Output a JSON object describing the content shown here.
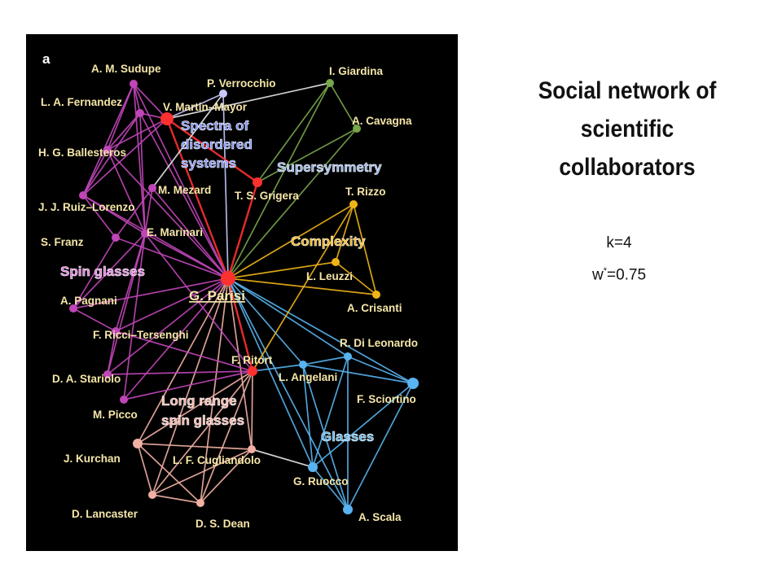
{
  "figure": {
    "panel_letter": "a",
    "colors": {
      "background": "#000000",
      "spin_glasses": "#c046b8",
      "disordered": "#ff3030",
      "supersymmetry": "#78a64a",
      "complexity": "#f0b418",
      "glasses": "#58b4f0",
      "long_range": "#f2b0a4",
      "other": "#c8c8ff",
      "white_edge": "#e8e8e8"
    },
    "nodes": [
      {
        "id": "sudupe",
        "label": "A. M. Sudupe",
        "group": "spin_glasses"
      },
      {
        "id": "fernandez",
        "label": "L. A. Fernandez",
        "group": "spin_glasses"
      },
      {
        "id": "ballesteros",
        "label": "H. G.  Ballesteros",
        "group": "spin_glasses"
      },
      {
        "id": "ruiz",
        "label": "J. J. Ruiz–Lorenzo",
        "group": "spin_glasses"
      },
      {
        "id": "franz",
        "label": "S. Franz",
        "group": "spin_glasses"
      },
      {
        "id": "marinari",
        "label": "E. Marinari",
        "group": "spin_glasses"
      },
      {
        "id": "pagnani",
        "label": "A. Pagnani",
        "group": "spin_glasses"
      },
      {
        "id": "ricci",
        "label": "F. Ricci–Tersenghi",
        "group": "spin_glasses"
      },
      {
        "id": "stariolo",
        "label": "D. A. Stariolo",
        "group": "spin_glasses"
      },
      {
        "id": "picco",
        "label": "M. Picco",
        "group": "spin_glasses"
      },
      {
        "id": "martin",
        "label": "V. Martin–Mayor",
        "group": "disordered"
      },
      {
        "id": "verrocchio",
        "label": "P. Verrocchio",
        "group": "other"
      },
      {
        "id": "mezard",
        "label": "M. Mezard",
        "group": "spin_glasses"
      },
      {
        "id": "grigera",
        "label": "T. S. Grigera",
        "group": "disordered"
      },
      {
        "id": "giardina",
        "label": "I. Giardina",
        "group": "supersymmetry"
      },
      {
        "id": "cavagna",
        "label": "A. Cavagna",
        "group": "supersymmetry"
      },
      {
        "id": "rizzo",
        "label": "T. Rizzo",
        "group": "complexity"
      },
      {
        "id": "leuzzi",
        "label": "L. Leuzzi",
        "group": "complexity"
      },
      {
        "id": "crisanti",
        "label": "A. Crisanti",
        "group": "complexity"
      },
      {
        "id": "parisi",
        "label": "G. Parisi",
        "group": "disordered"
      },
      {
        "id": "ritort",
        "label": "F. Ritort",
        "group": "disordered"
      },
      {
        "id": "dileonardo",
        "label": "R. Di Leonardo",
        "group": "glasses"
      },
      {
        "id": "angelani",
        "label": "L. Angelani",
        "group": "glasses"
      },
      {
        "id": "sciortino",
        "label": "F. Sciortino",
        "group": "glasses"
      },
      {
        "id": "ruocco",
        "label": "G. Ruocco",
        "group": "glasses"
      },
      {
        "id": "scala",
        "label": "A. Scala",
        "group": "glasses"
      },
      {
        "id": "kurchan",
        "label": "J. Kurchan",
        "group": "long_range"
      },
      {
        "id": "cugliandolo",
        "label": "L. F. Cugliandolo",
        "group": "long_range"
      },
      {
        "id": "lancaster",
        "label": "D. Lancaster",
        "group": "long_range"
      },
      {
        "id": "dean",
        "label": "D. S. Dean",
        "group": "long_range"
      }
    ],
    "community_labels": [
      {
        "id": "disordered_l1",
        "text": "Spectra of"
      },
      {
        "id": "disordered_l2",
        "text": "disordered"
      },
      {
        "id": "disordered_l3",
        "text": "systems"
      },
      {
        "id": "supersymmetry",
        "text": "Supersymmetry"
      },
      {
        "id": "complexity",
        "text": "Complexity"
      },
      {
        "id": "spin_glasses",
        "text": "Spin glasses"
      },
      {
        "id": "long_range_l1",
        "text": "Long range"
      },
      {
        "id": "long_range_l2",
        "text": "spin glasses"
      },
      {
        "id": "glasses",
        "text": "Glasses"
      }
    ],
    "edges": [
      [
        "parisi",
        "martin",
        "disordered"
      ],
      [
        "parisi",
        "verrocchio",
        "other"
      ],
      [
        "parisi",
        "grigera",
        "disordered"
      ],
      [
        "parisi",
        "ritort",
        "disordered"
      ],
      [
        "parisi",
        "giardina",
        "supersymmetry"
      ],
      [
        "parisi",
        "cavagna",
        "supersymmetry"
      ],
      [
        "parisi",
        "rizzo",
        "complexity"
      ],
      [
        "parisi",
        "leuzzi",
        "complexity"
      ],
      [
        "parisi",
        "crisanti",
        "complexity"
      ],
      [
        "parisi",
        "dileonardo",
        "glasses"
      ],
      [
        "parisi",
        "angelani",
        "glasses"
      ],
      [
        "parisi",
        "sciortino",
        "glasses"
      ],
      [
        "parisi",
        "ruocco",
        "glasses"
      ],
      [
        "parisi",
        "scala",
        "glasses"
      ],
      [
        "parisi",
        "sudupe",
        "spin_glasses"
      ],
      [
        "parisi",
        "fernandez",
        "spin_glasses"
      ],
      [
        "parisi",
        "ballesteros",
        "spin_glasses"
      ],
      [
        "parisi",
        "ruiz",
        "spin_glasses"
      ],
      [
        "parisi",
        "franz",
        "spin_glasses"
      ],
      [
        "parisi",
        "marinari",
        "spin_glasses"
      ],
      [
        "parisi",
        "pagnani",
        "spin_glasses"
      ],
      [
        "parisi",
        "ricci",
        "spin_glasses"
      ],
      [
        "parisi",
        "stariolo",
        "spin_glasses"
      ],
      [
        "parisi",
        "picco",
        "spin_glasses"
      ],
      [
        "parisi",
        "mezard",
        "spin_glasses"
      ],
      [
        "parisi",
        "kurchan",
        "long_range"
      ],
      [
        "parisi",
        "cugliandolo",
        "long_range"
      ],
      [
        "parisi",
        "lancaster",
        "long_range"
      ],
      [
        "parisi",
        "dean",
        "long_range"
      ],
      [
        "martin",
        "sudupe",
        "spin_glasses"
      ],
      [
        "martin",
        "fernandez",
        "spin_glasses"
      ],
      [
        "martin",
        "ballesteros",
        "spin_glasses"
      ],
      [
        "martin",
        "ruiz",
        "spin_glasses"
      ],
      [
        "martin",
        "verrocchio",
        "other"
      ],
      [
        "martin",
        "grigera",
        "disordered"
      ],
      [
        "martin",
        "giardina",
        "white_edge"
      ],
      [
        "grigera",
        "giardina",
        "supersymmetry"
      ],
      [
        "grigera",
        "cavagna",
        "supersymmetry"
      ],
      [
        "giardina",
        "cavagna",
        "supersymmetry"
      ],
      [
        "mezard",
        "verrocchio",
        "white_edge"
      ],
      [
        "sudupe",
        "fernandez",
        "spin_glasses"
      ],
      [
        "sudupe",
        "ballesteros",
        "spin_glasses"
      ],
      [
        "sudupe",
        "ruiz",
        "spin_glasses"
      ],
      [
        "sudupe",
        "marinari",
        "spin_glasses"
      ],
      [
        "fernandez",
        "ballesteros",
        "spin_glasses"
      ],
      [
        "fernandez",
        "ruiz",
        "spin_glasses"
      ],
      [
        "fernandez",
        "marinari",
        "spin_glasses"
      ],
      [
        "ballesteros",
        "ruiz",
        "spin_glasses"
      ],
      [
        "ballesteros",
        "marinari",
        "spin_glasses"
      ],
      [
        "ruiz",
        "marinari",
        "spin_glasses"
      ],
      [
        "ruiz",
        "franz",
        "spin_glasses"
      ],
      [
        "marinari",
        "mezard",
        "spin_glasses"
      ],
      [
        "marinari",
        "pagnani",
        "spin_glasses"
      ],
      [
        "marinari",
        "ricci",
        "spin_glasses"
      ],
      [
        "marinari",
        "stariolo",
        "spin_glasses"
      ],
      [
        "marinari",
        "picco",
        "spin_glasses"
      ],
      [
        "marinari",
        "ritort",
        "spin_glasses"
      ],
      [
        "ricci",
        "ritort",
        "spin_glasses"
      ],
      [
        "stariolo",
        "ritort",
        "spin_glasses"
      ],
      [
        "picco",
        "ritort",
        "spin_glasses"
      ],
      [
        "ricci",
        "pagnani",
        "spin_glasses"
      ],
      [
        "franz",
        "pagnani",
        "spin_glasses"
      ],
      [
        "ricci",
        "stariolo",
        "spin_glasses"
      ],
      [
        "mezard",
        "franz",
        "spin_glasses"
      ],
      [
        "rizzo",
        "leuzzi",
        "complexity"
      ],
      [
        "rizzo",
        "crisanti",
        "complexity"
      ],
      [
        "leuzzi",
        "crisanti",
        "complexity"
      ],
      [
        "rizzo",
        "ritort",
        "complexity"
      ],
      [
        "angelani",
        "dileonardo",
        "glasses"
      ],
      [
        "angelani",
        "sciortino",
        "glasses"
      ],
      [
        "angelani",
        "ruocco",
        "glasses"
      ],
      [
        "angelani",
        "scala",
        "glasses"
      ],
      [
        "dileonardo",
        "sciortino",
        "glasses"
      ],
      [
        "dileonardo",
        "ruocco",
        "glasses"
      ],
      [
        "dileonardo",
        "scala",
        "glasses"
      ],
      [
        "sciortino",
        "ruocco",
        "glasses"
      ],
      [
        "sciortino",
        "scala",
        "glasses"
      ],
      [
        "ruocco",
        "scala",
        "glasses"
      ],
      [
        "angelani",
        "ritort",
        "glasses"
      ],
      [
        "ruocco",
        "cugliandolo",
        "white_edge"
      ],
      [
        "ritort",
        "kurchan",
        "long_range"
      ],
      [
        "ritort",
        "cugliandolo",
        "long_range"
      ],
      [
        "ritort",
        "lancaster",
        "long_range"
      ],
      [
        "ritort",
        "dean",
        "long_range"
      ],
      [
        "kurchan",
        "cugliandolo",
        "long_range"
      ],
      [
        "kurchan",
        "lancaster",
        "long_range"
      ],
      [
        "kurchan",
        "dean",
        "long_range"
      ],
      [
        "cugliandolo",
        "lancaster",
        "long_range"
      ],
      [
        "cugliandolo",
        "dean",
        "long_range"
      ],
      [
        "lancaster",
        "dean",
        "long_range"
      ]
    ]
  },
  "title": {
    "line1": "Social network of",
    "line2": "scientific",
    "line3": "collaborators"
  },
  "params": {
    "k_text": "k=4",
    "w_symbol": "w",
    "w_superscript": "*",
    "w_value": "=0.75"
  }
}
